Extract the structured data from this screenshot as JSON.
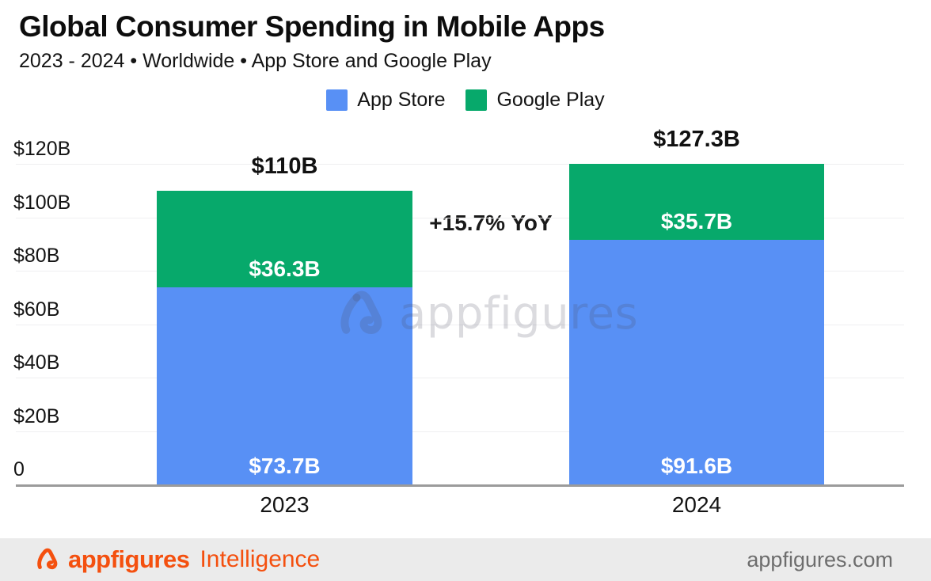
{
  "header": {
    "title": "Global Consumer Spending in Mobile Apps",
    "subtitle": "2023 - 2024 • Worldwide • App Store and Google Play"
  },
  "legend": [
    {
      "label": "App Store",
      "color": "#5890F5"
    },
    {
      "label": "Google Play",
      "color": "#07A96B"
    }
  ],
  "chart_data": {
    "type": "bar",
    "stacked": true,
    "title": "Global Consumer Spending in Mobile Apps",
    "subtitle": "2023 - 2024 • Worldwide • App Store and Google Play",
    "categories": [
      "2023",
      "2024"
    ],
    "series": [
      {
        "name": "App Store",
        "color": "#5890F5",
        "values": [
          73.7,
          91.6
        ],
        "labels": [
          "$73.7B",
          "$91.6B"
        ]
      },
      {
        "name": "Google Play",
        "color": "#07A96B",
        "values": [
          36.3,
          35.7
        ],
        "labels": [
          "$36.3B",
          "$35.7B"
        ]
      }
    ],
    "totals": [
      110,
      127.3
    ],
    "total_labels": [
      "$110B",
      "$127.3B"
    ],
    "annotation": "+15.7% YoY",
    "ylim": [
      0,
      120
    ],
    "yticks": [
      {
        "value": 0,
        "label": "0"
      },
      {
        "value": 20,
        "label": "$20B"
      },
      {
        "value": 40,
        "label": "$40B"
      },
      {
        "value": 60,
        "label": "$60B"
      },
      {
        "value": 80,
        "label": "$80B"
      },
      {
        "value": 100,
        "label": "$100B"
      },
      {
        "value": 120,
        "label": "$120B"
      }
    ],
    "grid": true,
    "legend_position": "top"
  },
  "watermark": {
    "text": "appfigures"
  },
  "footer": {
    "brand": "appfigures",
    "product": "Intelligence",
    "site": "appfigures.com",
    "accent_color": "#F4500F",
    "site_color": "#6D6D6D"
  }
}
